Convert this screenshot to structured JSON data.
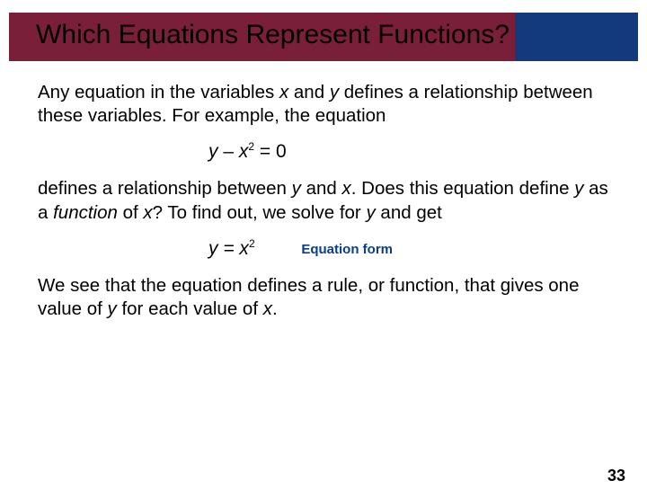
{
  "banner": {
    "left_color": "#7a1f3a",
    "right_color": "#133a7c",
    "title": "Which Equations Represent Functions?",
    "title_color": "#000000"
  },
  "body": {
    "p1_a": "Any equation in the variables ",
    "p1_b": " and ",
    "p1_c": " defines a relationship between these variables. For example, the equation",
    "var_x": "x",
    "var_y": "y",
    "eq1": "y – x",
    "eq1_sup": "2",
    "eq1_tail": " = 0",
    "p2_a": "defines a relationship between ",
    "p2_b": " and ",
    "p2_c": ". Does this equation define ",
    "p2_d": " as a ",
    "term_function": "function",
    "p2_e": " of ",
    "p2_f": "? To find out, we solve for ",
    "p2_g": " and get",
    "eq2": "y = x",
    "eq2_sup": "2",
    "eq2_label": "Equation form",
    "p3_a": "We see that the equation defines a rule, or function, that gives one value of ",
    "p3_b": " for each value of ",
    "p3_c": "."
  },
  "page_number": "33",
  "style": {
    "body_fontsize": 20.5,
    "eq_label_color": "#0a3e8a"
  }
}
